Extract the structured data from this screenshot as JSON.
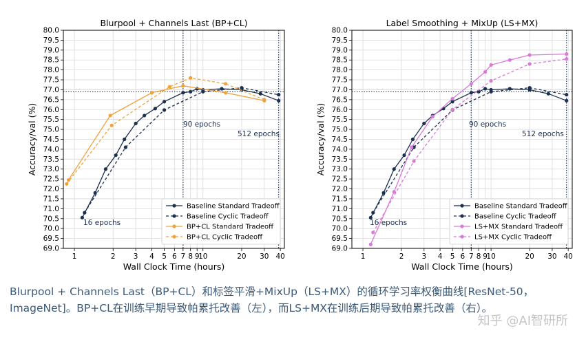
{
  "caption": "Blurpool + Channels Last（BP+CL）和标签平滑+MixUp（LS+MX）的循环学习率权衡曲线[ResNet-50，ImageNet]。BP+CL在训练早期导致帕累托改善（左），而LS+MX在训练后期导致帕累托改善（右）。",
  "watermark": "知乎 @AI智研所",
  "chart_data": [
    {
      "type": "line",
      "title": "Blurpool + Channels Last (BP+CL)",
      "xlabel": "Wall Clock Time (hours)",
      "ylabel": "Accuracy/val (%)",
      "x_scale": "log",
      "xlim": [
        0.82,
        43
      ],
      "ylim": [
        69.0,
        80.0
      ],
      "xticks": [
        "1",
        "2",
        "3",
        "4",
        "5",
        "6",
        "7",
        "8",
        "9",
        "10",
        "20",
        "30",
        "40"
      ],
      "yticks": [
        "69.0",
        "69.5",
        "70.0",
        "70.5",
        "71.0",
        "71.5",
        "72.0",
        "72.5",
        "73.0",
        "73.5",
        "74.0",
        "74.5",
        "75.0",
        "75.5",
        "76.0",
        "76.5",
        "77.0",
        "77.5",
        "78.0",
        "78.5",
        "79.0",
        "79.5",
        "80.0"
      ],
      "grid": true,
      "legend_position": "lower-right",
      "reference_lines": {
        "horizontal_y": 76.9,
        "vertical_x": [
          7.0,
          38.8
        ]
      },
      "annotations": [
        "16 epochs",
        "90 epochs",
        "512 epochs"
      ],
      "series": [
        {
          "name": "Baseline Standard Tradeoff",
          "color": "#1b2f4e",
          "dashed": false,
          "x": [
            1.15,
            1.45,
            1.75,
            2.1,
            2.45,
            3.0,
            3.5,
            4.25,
            5.0,
            7.0,
            8.0,
            9.0,
            10.0,
            14.0,
            20.0,
            28.0,
            38.8
          ],
          "y": [
            70.55,
            71.8,
            73.0,
            73.7,
            74.5,
            75.3,
            75.7,
            76.05,
            76.4,
            76.85,
            76.9,
            77.05,
            77.0,
            77.05,
            77.0,
            76.8,
            76.45
          ]
        },
        {
          "name": "Baseline Cyclic Tradeoff",
          "color": "#1b2f4e",
          "dashed": true,
          "x": [
            1.2,
            2.5,
            5.0,
            10.0,
            20.0,
            38.8
          ],
          "y": [
            70.8,
            74.1,
            75.98,
            76.9,
            77.1,
            76.75
          ]
        },
        {
          "name": "BP+CL Standard Tradeoff",
          "color": "#f0a23a",
          "dashed": false,
          "x": [
            0.9,
            1.9,
            4.0,
            7.0,
            15.0,
            30.0
          ],
          "y": [
            72.45,
            75.7,
            76.85,
            77.2,
            76.85,
            76.45
          ]
        },
        {
          "name": "BP+CL Cyclic Tradeoff",
          "color": "#f0a23a",
          "dashed": true,
          "x": [
            0.87,
            1.95,
            5.5,
            8.0,
            15.0,
            30.0
          ],
          "y": [
            72.25,
            75.2,
            77.15,
            77.6,
            77.3,
            76.5
          ]
        }
      ]
    },
    {
      "type": "line",
      "title": "Label Smoothing + MixUp (LS+MX)",
      "xlabel": "Wall Clock Time (hours)",
      "ylabel": "Accuracy/val (%)",
      "x_scale": "log",
      "xlim": [
        0.82,
        43
      ],
      "ylim": [
        69.0,
        80.0
      ],
      "xticks": [
        "1",
        "2",
        "3",
        "4",
        "5",
        "6",
        "7",
        "8",
        "9",
        "10",
        "20",
        "30",
        "40"
      ],
      "yticks": [
        "69.0",
        "69.5",
        "70.0",
        "70.5",
        "71.0",
        "71.5",
        "72.0",
        "72.5",
        "73.0",
        "73.5",
        "74.0",
        "74.5",
        "75.0",
        "75.5",
        "76.0",
        "76.5",
        "77.0",
        "77.5",
        "78.0",
        "78.5",
        "79.0",
        "79.5",
        "80.0"
      ],
      "grid": true,
      "legend_position": "lower-right",
      "reference_lines": {
        "horizontal_y": 76.9,
        "vertical_x": [
          7.0,
          38.8
        ]
      },
      "annotations": [
        "16 epochs",
        "90 epochs",
        "512 epochs"
      ],
      "series": [
        {
          "name": "Baseline Standard Tradeoff",
          "color": "#1b2f4e",
          "dashed": false,
          "x": [
            1.15,
            1.45,
            1.75,
            2.1,
            2.45,
            3.0,
            3.5,
            4.25,
            5.0,
            7.0,
            8.0,
            9.0,
            10.0,
            14.0,
            20.0,
            28.0,
            38.8
          ],
          "y": [
            70.55,
            71.8,
            73.0,
            73.7,
            74.5,
            75.3,
            75.7,
            76.05,
            76.4,
            76.85,
            76.9,
            77.05,
            77.0,
            77.05,
            77.0,
            76.8,
            76.45
          ]
        },
        {
          "name": "Baseline Cyclic Tradeoff",
          "color": "#1b2f4e",
          "dashed": true,
          "x": [
            1.2,
            2.5,
            5.0,
            10.0,
            20.0,
            38.8
          ],
          "y": [
            70.8,
            74.1,
            75.98,
            76.9,
            77.1,
            76.75
          ]
        },
        {
          "name": "LS+MX Standard Tradeoff",
          "color": "#d87ad8",
          "dashed": false,
          "x": [
            1.15,
            1.75,
            2.4,
            3.5,
            5.0,
            7.0,
            9.0,
            10.0,
            14.0,
            20.0,
            38.8
          ],
          "y": [
            69.2,
            71.85,
            74.1,
            75.65,
            76.55,
            77.3,
            77.9,
            78.25,
            78.5,
            78.75,
            78.8
          ]
        },
        {
          "name": "LS+MX Cyclic Tradeoff",
          "color": "#d87ad8",
          "dashed": true,
          "x": [
            1.2,
            2.5,
            5.0,
            10.0,
            20.0,
            38.8
          ],
          "y": [
            69.8,
            73.4,
            76.0,
            77.45,
            78.3,
            78.55
          ]
        }
      ]
    }
  ]
}
